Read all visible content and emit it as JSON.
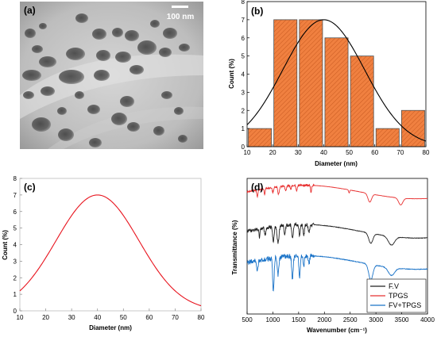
{
  "figure": {
    "panel_labels": [
      "(a)",
      "(b)",
      "(c)",
      "(d)"
    ],
    "scale_bar_label": "100 nm"
  },
  "colors": {
    "histogram_fill": "#f08040",
    "histogram_edge": "#505050",
    "fit_curve": "#000000",
    "panel_c_curve": "#e8141e",
    "FV": "#222222",
    "TPGS": "#e83030",
    "FV_TPGS": "#1a73c8"
  },
  "chart_data": [
    {
      "panel": "b",
      "type": "bar",
      "bins": [
        [
          10,
          20
        ],
        [
          20,
          30
        ],
        [
          30,
          40
        ],
        [
          40,
          50
        ],
        [
          50,
          60
        ],
        [
          60,
          70
        ],
        [
          70,
          80
        ]
      ],
      "values": [
        1,
        7,
        7,
        6,
        5,
        1,
        2
      ],
      "fit": {
        "type": "gaussian",
        "mean": 40,
        "sd": 16,
        "peak": 7
      },
      "xlabel": "Diameter (nm)",
      "ylabel": "Count (%)",
      "xlim": [
        10,
        80
      ],
      "ylim": [
        0,
        8
      ],
      "xticks": [
        "10",
        "20",
        "30",
        "40",
        "50",
        "60",
        "70",
        "80"
      ],
      "yticks": [
        "0",
        "1",
        "2",
        "3",
        "4",
        "5",
        "6",
        "7",
        "8"
      ]
    },
    {
      "panel": "c",
      "type": "line",
      "curve": {
        "type": "gaussian",
        "mean": 40,
        "sd": 16,
        "peak": 7
      },
      "xlabel": "Diameter (nm)",
      "ylabel": "Count (%)",
      "xlim": [
        10,
        80
      ],
      "ylim": [
        0,
        8
      ],
      "xticks": [
        "10",
        "20",
        "30",
        "40",
        "50",
        "60",
        "70",
        "80"
      ],
      "yticks": [
        "0",
        "1",
        "2",
        "3",
        "4",
        "5",
        "6",
        "7",
        "8"
      ]
    },
    {
      "panel": "d",
      "type": "line",
      "xlabel": "Wavenumber (cm⁻¹)",
      "ylabel": "Transmittance (%)",
      "xlim": [
        500,
        4000
      ],
      "xticks": [
        "500",
        "1000",
        "1500",
        "2000",
        "2500",
        "3000",
        "3500",
        "4000"
      ],
      "legend_position": "bottom-right",
      "series": [
        {
          "name": "F.V",
          "color_key": "FV",
          "offset": 0.39,
          "depth": 0.85,
          "bands": [
            [
              1010,
              0.55,
              14
            ],
            [
              1100,
              0.6,
              18
            ],
            [
              1230,
              0.35,
              12
            ],
            [
              1380,
              0.5,
              15
            ],
            [
              1520,
              0.4,
              12
            ],
            [
              1600,
              0.35,
              14
            ],
            [
              1700,
              0.25,
              15
            ],
            [
              2900,
              0.35,
              40
            ],
            [
              3300,
              0.3,
              60
            ],
            [
              850,
              0.25,
              12
            ],
            [
              740,
              0.3,
              10
            ]
          ]
        },
        {
          "name": "TPGS",
          "color_key": "TPGS",
          "offset": 0.1,
          "depth": 0.45,
          "bands": [
            [
              700,
              0.4,
              12
            ],
            [
              840,
              0.35,
              10
            ],
            [
              1000,
              0.3,
              12
            ],
            [
              1110,
              0.5,
              14
            ],
            [
              1250,
              0.35,
              12
            ],
            [
              1350,
              0.25,
              10
            ],
            [
              1460,
              0.35,
              12
            ],
            [
              1740,
              0.45,
              10
            ],
            [
              2880,
              0.55,
              35
            ],
            [
              2480,
              0.2,
              10
            ],
            [
              3480,
              0.45,
              40
            ]
          ]
        },
        {
          "name": "FV+TPGS",
          "color_key": "FV_TPGS",
          "offset": 0.62,
          "depth": 1.15,
          "bands": [
            [
              1010,
              0.85,
              14
            ],
            [
              1100,
              0.45,
              15
            ],
            [
              1380,
              0.6,
              14
            ],
            [
              1520,
              0.55,
              14
            ],
            [
              1600,
              0.3,
              12
            ],
            [
              1700,
              0.2,
              14
            ],
            [
              2900,
              0.4,
              40
            ],
            [
              3300,
              0.2,
              60
            ],
            [
              700,
              0.3,
              12
            ]
          ]
        }
      ]
    }
  ]
}
